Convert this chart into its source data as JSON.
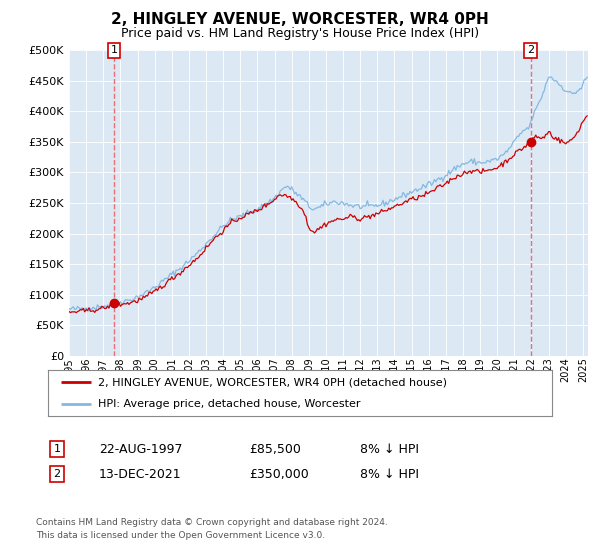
{
  "title": "2, HINGLEY AVENUE, WORCESTER, WR4 0PH",
  "subtitle": "Price paid vs. HM Land Registry's House Price Index (HPI)",
  "title_fontsize": 11,
  "subtitle_fontsize": 9,
  "plot_bg_color": "#dce9f5",
  "hpi_color": "#85b8e0",
  "price_color": "#cc0000",
  "vline_color": "#e87070",
  "ylim": [
    0,
    500000
  ],
  "yticks": [
    0,
    50000,
    100000,
    150000,
    200000,
    250000,
    300000,
    350000,
    400000,
    450000,
    500000
  ],
  "sale1_date_num": 1997.64,
  "sale1_price": 85500,
  "sale1_label": "22-AUG-1997",
  "sale1_pct": "8% ↓ HPI",
  "sale2_date_num": 2021.95,
  "sale2_price": 350000,
  "sale2_label": "13-DEC-2021",
  "sale2_pct": "8% ↓ HPI",
  "legend_line1": "2, HINGLEY AVENUE, WORCESTER, WR4 0PH (detached house)",
  "legend_line2": "HPI: Average price, detached house, Worcester",
  "footer": "Contains HM Land Registry data © Crown copyright and database right 2024.\nThis data is licensed under the Open Government Licence v3.0.",
  "xstart": 1995.0,
  "xend": 2025.3
}
